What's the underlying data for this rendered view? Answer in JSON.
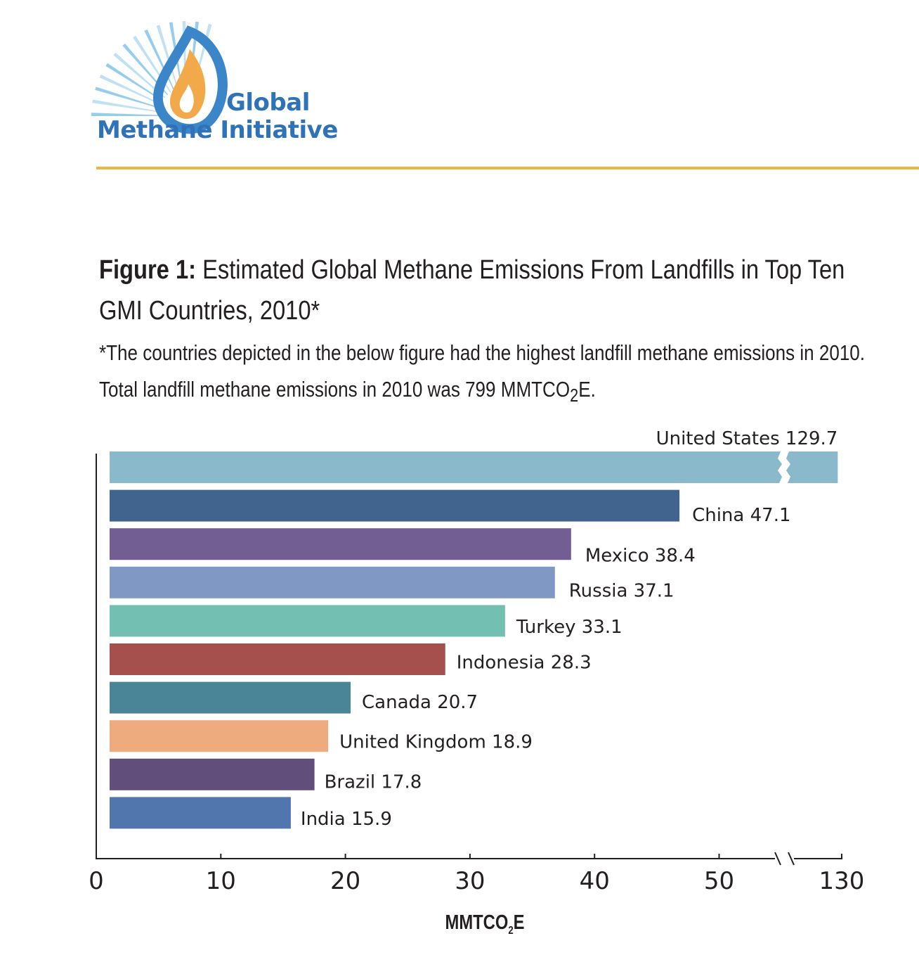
{
  "logo": {
    "line1": "Global",
    "line2": "Methane Initiative",
    "colors": {
      "text": "#2f72b8",
      "flame": "#f2a94a",
      "ring": "#3b86c8",
      "rays": "#8cc8ea"
    }
  },
  "figure": {
    "label": "Figure 1:",
    "title": "Estimated Global Methane Emissions From Landfills in Top Ten GMI Countries, 2010*",
    "note_part1": "*The countries depicted in the below figure had the highest landfill methane emissions in 2010. Total landfill methane emissions in 2010 was 799 MMTCO",
    "note_sub": "2",
    "note_part2": "E."
  },
  "chart_data": {
    "type": "bar",
    "orientation": "horizontal",
    "categories": [
      "United States",
      "China",
      "Mexico",
      "Russia",
      "Turkey",
      "Indonesia",
      "Canada",
      "United Kingdom",
      "Brazil",
      "India"
    ],
    "values": [
      129.7,
      47.1,
      38.4,
      37.1,
      33.1,
      28.3,
      20.7,
      18.9,
      17.8,
      15.9
    ],
    "data_labels": [
      "United States 129.7",
      "China 47.1",
      "Mexico 38.4",
      "Russia  37.1",
      "Turkey  33.1",
      "Indonesia 28.3",
      "Canada 20.7",
      "United Kingdom 18.9",
      "Brazil 17.8",
      "India 15.9"
    ],
    "colors": [
      "#8ab9cb",
      "#41648f",
      "#735e94",
      "#8098c4",
      "#73c0b2",
      "#a5504c",
      "#4a8497",
      "#edab7e",
      "#614e7a",
      "#5176ad"
    ],
    "x_ticks": [
      "0",
      "10",
      "20",
      "30",
      "40",
      "50",
      "130"
    ],
    "x_tick_values": [
      0,
      10,
      20,
      30,
      40,
      50,
      130
    ],
    "axis_break": "between 50 and 130",
    "xlabel_main": "MMTCO",
    "xlabel_sub": "2",
    "xlabel_end": "E",
    "xlim": [
      0,
      130
    ],
    "grid": false,
    "legend": "none"
  }
}
